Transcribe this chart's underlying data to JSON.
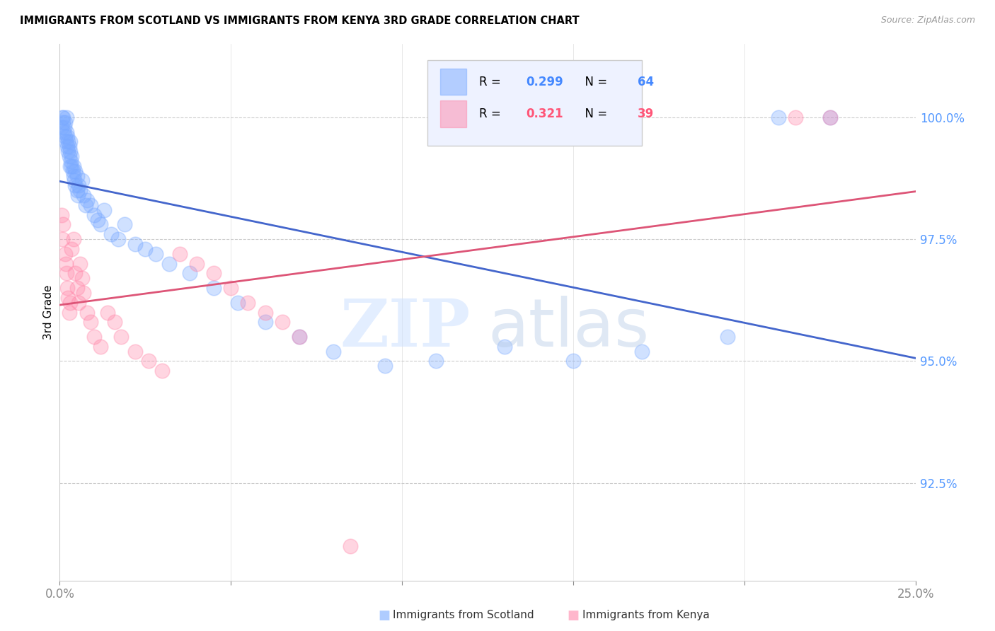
{
  "title": "IMMIGRANTS FROM SCOTLAND VS IMMIGRANTS FROM KENYA 3RD GRADE CORRELATION CHART",
  "source": "Source: ZipAtlas.com",
  "ylabel": "3rd Grade",
  "ytick_labels": [
    "92.5%",
    "95.0%",
    "97.5%",
    "100.0%"
  ],
  "ytick_values": [
    92.5,
    95.0,
    97.5,
    100.0
  ],
  "xlim": [
    0.0,
    25.0
  ],
  "ylim": [
    90.5,
    101.5
  ],
  "scotland_R": 0.299,
  "scotland_N": 64,
  "kenya_R": 0.321,
  "kenya_N": 39,
  "scotland_color": "#7aaaff",
  "kenya_color": "#ff88aa",
  "scotland_line_color": "#4466cc",
  "kenya_line_color": "#dd5577",
  "scotland_x": [
    0.05,
    0.08,
    0.1,
    0.1,
    0.12,
    0.13,
    0.15,
    0.15,
    0.18,
    0.2,
    0.2,
    0.22,
    0.22,
    0.25,
    0.25,
    0.28,
    0.28,
    0.3,
    0.3,
    0.3,
    0.32,
    0.35,
    0.35,
    0.38,
    0.4,
    0.4,
    0.42,
    0.45,
    0.45,
    0.5,
    0.5,
    0.52,
    0.55,
    0.6,
    0.65,
    0.7,
    0.75,
    0.8,
    0.9,
    1.0,
    1.1,
    1.2,
    1.3,
    1.5,
    1.7,
    1.9,
    2.2,
    2.5,
    2.8,
    3.2,
    3.8,
    4.5,
    5.2,
    6.0,
    7.0,
    8.0,
    9.5,
    11.0,
    13.0,
    15.0,
    17.0,
    19.5,
    21.0,
    22.5
  ],
  "scotland_y": [
    99.8,
    100.0,
    99.9,
    100.0,
    99.7,
    99.8,
    99.6,
    99.9,
    99.5,
    99.7,
    100.0,
    99.4,
    99.6,
    99.3,
    99.5,
    99.2,
    99.4,
    99.0,
    99.3,
    99.5,
    99.1,
    99.0,
    99.2,
    98.9,
    98.8,
    99.0,
    98.7,
    98.6,
    98.9,
    98.5,
    98.8,
    98.4,
    98.6,
    98.5,
    98.7,
    98.4,
    98.2,
    98.3,
    98.2,
    98.0,
    97.9,
    97.8,
    98.1,
    97.6,
    97.5,
    97.8,
    97.4,
    97.3,
    97.2,
    97.0,
    96.8,
    96.5,
    96.2,
    95.8,
    95.5,
    95.2,
    94.9,
    95.0,
    95.3,
    95.0,
    95.2,
    95.5,
    100.0,
    100.0
  ],
  "kenya_x": [
    0.05,
    0.08,
    0.1,
    0.15,
    0.18,
    0.2,
    0.22,
    0.25,
    0.28,
    0.3,
    0.35,
    0.4,
    0.45,
    0.5,
    0.55,
    0.6,
    0.65,
    0.7,
    0.8,
    0.9,
    1.0,
    1.2,
    1.4,
    1.6,
    1.8,
    2.2,
    2.6,
    3.0,
    3.5,
    4.0,
    4.5,
    5.0,
    5.5,
    6.0,
    6.5,
    7.0,
    8.5,
    21.5,
    22.5
  ],
  "kenya_y": [
    98.0,
    97.5,
    97.8,
    97.2,
    97.0,
    96.8,
    96.5,
    96.3,
    96.0,
    96.2,
    97.3,
    97.5,
    96.8,
    96.5,
    96.2,
    97.0,
    96.7,
    96.4,
    96.0,
    95.8,
    95.5,
    95.3,
    96.0,
    95.8,
    95.5,
    95.2,
    95.0,
    94.8,
    97.2,
    97.0,
    96.8,
    96.5,
    96.2,
    96.0,
    95.8,
    95.5,
    91.2,
    100.0,
    100.0
  ]
}
